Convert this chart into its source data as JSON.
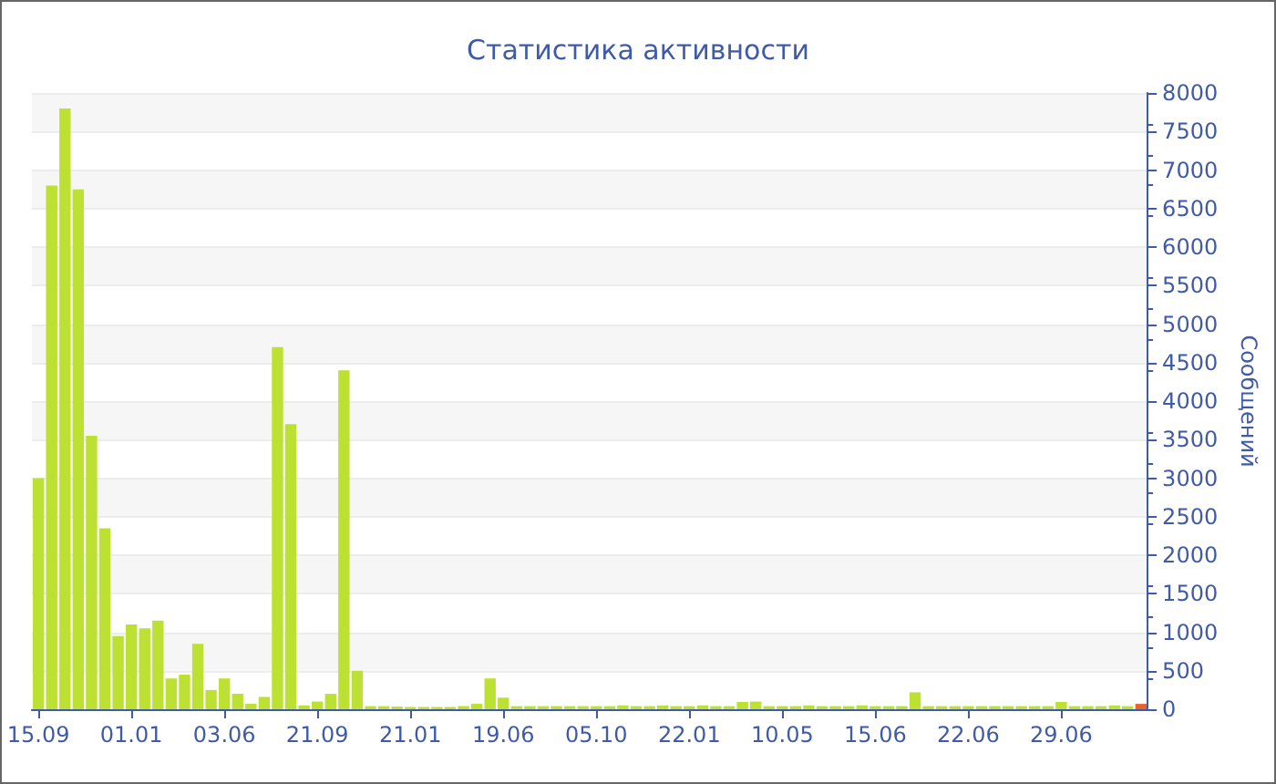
{
  "chart_data": {
    "type": "bar",
    "title": "Статистика активности",
    "ylabel": "Сообщений",
    "categories": [
      "15.09",
      null,
      null,
      null,
      null,
      null,
      null,
      "01.01",
      null,
      null,
      null,
      null,
      null,
      null,
      "03.06",
      null,
      null,
      null,
      null,
      null,
      null,
      "21.09",
      null,
      null,
      null,
      null,
      null,
      null,
      "21.01",
      null,
      null,
      null,
      null,
      null,
      null,
      "19.06",
      null,
      null,
      null,
      null,
      null,
      null,
      "05.10",
      null,
      null,
      null,
      null,
      null,
      null,
      "22.01",
      null,
      null,
      null,
      null,
      null,
      null,
      "10.05",
      null,
      null,
      null,
      null,
      null,
      null,
      "15.06",
      null,
      null,
      null,
      null,
      null,
      null,
      "22.06",
      null,
      null,
      null,
      null,
      null,
      null,
      "29.06",
      null,
      null,
      null,
      null,
      null,
      null
    ],
    "values": [
      3000,
      6800,
      7800,
      6750,
      3550,
      2350,
      950,
      1100,
      1050,
      1150,
      400,
      450,
      850,
      250,
      400,
      200,
      70,
      160,
      4700,
      3700,
      50,
      100,
      200,
      4400,
      500,
      40,
      40,
      35,
      30,
      30,
      30,
      30,
      40,
      70,
      400,
      150,
      40,
      40,
      40,
      40,
      40,
      40,
      40,
      40,
      50,
      40,
      40,
      50,
      40,
      40,
      50,
      40,
      40,
      95,
      100,
      40,
      40,
      40,
      50,
      40,
      40,
      40,
      50,
      40,
      40,
      40,
      220,
      40,
      40,
      40,
      40,
      40,
      40,
      40,
      40,
      40,
      40,
      95,
      40,
      40,
      40,
      50,
      40,
      70
    ],
    "colors": [
      "#bde132",
      "#bde132",
      "#bde132",
      "#bde132",
      "#bde132",
      "#bde132",
      "#bde132",
      "#bde132",
      "#bde132",
      "#bde132",
      "#bde132",
      "#bde132",
      "#bde132",
      "#bde132",
      "#bde132",
      "#bde132",
      "#bde132",
      "#bde132",
      "#bde132",
      "#bde132",
      "#bde132",
      "#bde132",
      "#bde132",
      "#bde132",
      "#bde132",
      "#bde132",
      "#bde132",
      "#bde132",
      "#bde132",
      "#bde132",
      "#bde132",
      "#bde132",
      "#bde132",
      "#bde132",
      "#bde132",
      "#bde132",
      "#bde132",
      "#bde132",
      "#bde132",
      "#bde132",
      "#bde132",
      "#bde132",
      "#bde132",
      "#bde132",
      "#bde132",
      "#bde132",
      "#bde132",
      "#bde132",
      "#bde132",
      "#bde132",
      "#bde132",
      "#bde132",
      "#bde132",
      "#bde132",
      "#bde132",
      "#bde132",
      "#bde132",
      "#bde132",
      "#bde132",
      "#bde132",
      "#bde132",
      "#bde132",
      "#bde132",
      "#bde132",
      "#bde132",
      "#bde132",
      "#bde132",
      "#bde132",
      "#bde132",
      "#bde132",
      "#bde132",
      "#bde132",
      "#bde132",
      "#bde132",
      "#bde132",
      "#bde132",
      "#bde132",
      "#bde132",
      "#bde132",
      "#bde132",
      "#bde132",
      "#bde132",
      "#bde132",
      "#e8622a"
    ],
    "ylim": [
      0,
      8000
    ],
    "yticks": [
      0,
      500,
      1000,
      1500,
      2000,
      2500,
      3000,
      3500,
      4000,
      4500,
      5000,
      5500,
      6000,
      6500,
      7000,
      7500,
      8000
    ],
    "grid": "y"
  }
}
